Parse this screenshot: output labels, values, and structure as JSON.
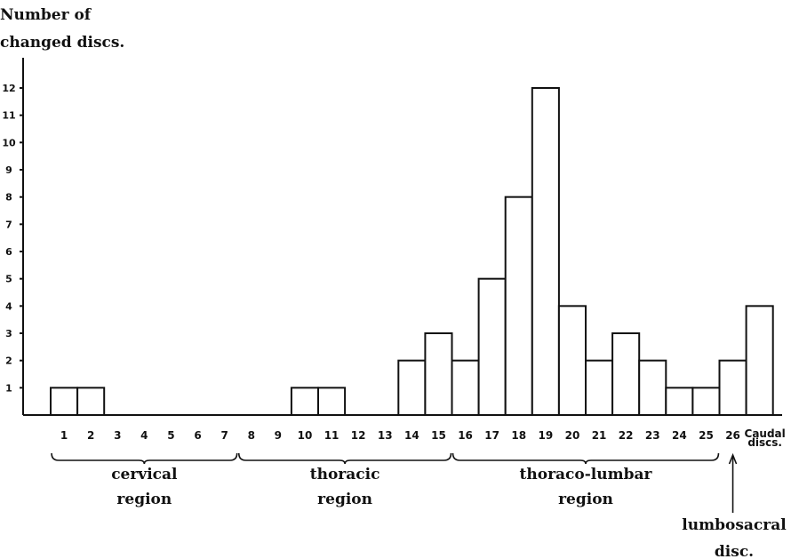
{
  "chart_data": {
    "type": "bar",
    "ylabel_lines": [
      "Number of",
      "changed discs."
    ],
    "xlabel": "",
    "ylim": [
      0,
      12
    ],
    "yticks": [
      1,
      2,
      3,
      4,
      5,
      6,
      7,
      8,
      9,
      10,
      11,
      12
    ],
    "categories": [
      "1",
      "2",
      "3",
      "4",
      "5",
      "6",
      "7",
      "8",
      "9",
      "10",
      "11",
      "12",
      "13",
      "14",
      "15",
      "16",
      "17",
      "18",
      "19",
      "20",
      "21",
      "22",
      "23",
      "24",
      "25",
      "26",
      "Caudal discs."
    ],
    "values": [
      1,
      1,
      0,
      0,
      0,
      0,
      0,
      0,
      0,
      1,
      1,
      0,
      0,
      2,
      3,
      2,
      5,
      8,
      12,
      4,
      2,
      3,
      2,
      1,
      1,
      2,
      4
    ],
    "regions": [
      {
        "lines": [
          "cervical",
          "region"
        ],
        "from": "1",
        "to": "7"
      },
      {
        "lines": [
          "thoracic",
          "region"
        ],
        "from": "8",
        "to": "15"
      },
      {
        "lines": [
          "thoraco-lumbar",
          "region"
        ],
        "from": "16",
        "to": "25"
      }
    ],
    "annotation": {
      "lines": [
        "lumbosacral",
        "disc."
      ],
      "target": "26"
    },
    "grid": false,
    "legend": "none"
  }
}
